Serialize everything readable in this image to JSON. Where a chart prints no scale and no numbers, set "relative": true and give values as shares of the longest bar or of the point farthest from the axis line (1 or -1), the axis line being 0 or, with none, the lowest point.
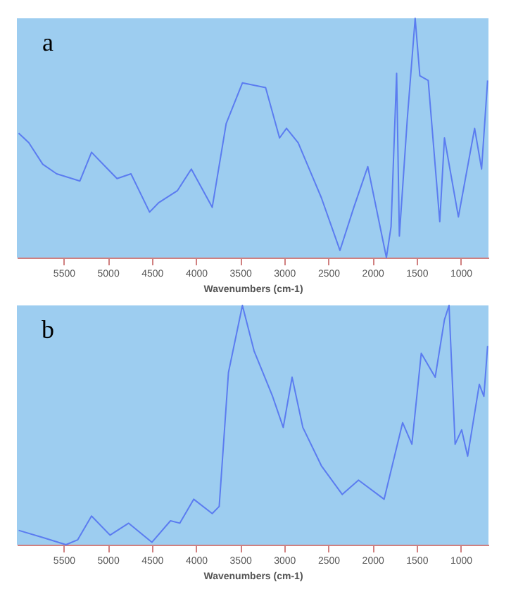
{
  "chart_data": [
    {
      "type": "line",
      "relative": true,
      "annotations": [
        "a"
      ],
      "xlabel": "Wavenumbers (cm-1)",
      "xlim": [
        6030,
        685
      ],
      "xticks": [
        5500,
        5000,
        4500,
        4000,
        3500,
        3000,
        2500,
        2000,
        1500,
        1000
      ],
      "grid": false,
      "series": [
        {
          "color": "#5b7cf0",
          "x": [
            6010,
            5895,
            5737,
            5579,
            5316,
            5184,
            5000,
            4895,
            4737,
            4526,
            4421,
            4210,
            4053,
            3816,
            3658,
            3474,
            3211,
            3053,
            2974,
            2842,
            2579,
            2368,
            2211,
            2053,
            1842,
            1789,
            1726,
            1695,
            1605,
            1516,
            1463,
            1368,
            1237,
            1184,
            1026,
            842,
            763,
            695
          ],
          "values": [
            0.52,
            0.48,
            0.39,
            0.35,
            0.32,
            0.44,
            0.37,
            0.33,
            0.35,
            0.19,
            0.23,
            0.28,
            0.37,
            0.21,
            0.56,
            0.73,
            0.71,
            0.5,
            0.54,
            0.48,
            0.25,
            0.03,
            0.21,
            0.38,
            0,
            0.13,
            0.77,
            0.09,
            0.58,
            1,
            0.76,
            0.74,
            0.15,
            0.5,
            0.17,
            0.54,
            0.37,
            0.74
          ]
        }
      ]
    },
    {
      "type": "line",
      "relative": true,
      "annotations": [
        "b"
      ],
      "xlabel": "Wavenumbers (cm-1)",
      "xlim": [
        6030,
        685
      ],
      "xticks": [
        5500,
        5000,
        4500,
        4000,
        3500,
        3000,
        2500,
        2000,
        1500,
        1000
      ],
      "grid": false,
      "series": [
        {
          "color": "#5b7cf0",
          "x": [
            6010,
            5737,
            5474,
            5342,
            5184,
            4974,
            4763,
            4500,
            4289,
            4184,
            4026,
            3816,
            3737,
            3632,
            3474,
            3342,
            3132,
            3011,
            2911,
            2789,
            2579,
            2342,
            2158,
            1868,
            1658,
            1553,
            1447,
            1289,
            1184,
            1132,
            1063,
            989,
            921,
            789,
            737,
            695
          ],
          "values": [
            0.06,
            0.03,
            0,
            0.02,
            0.12,
            0.04,
            0.09,
            0.01,
            0.1,
            0.09,
            0.19,
            0.13,
            0.16,
            0.72,
            1,
            0.81,
            0.62,
            0.49,
            0.7,
            0.49,
            0.33,
            0.21,
            0.27,
            0.19,
            0.51,
            0.42,
            0.8,
            0.7,
            0.94,
            1.0,
            0.42,
            0.48,
            0.37,
            0.67,
            0.62,
            0.83
          ]
        }
      ]
    }
  ]
}
